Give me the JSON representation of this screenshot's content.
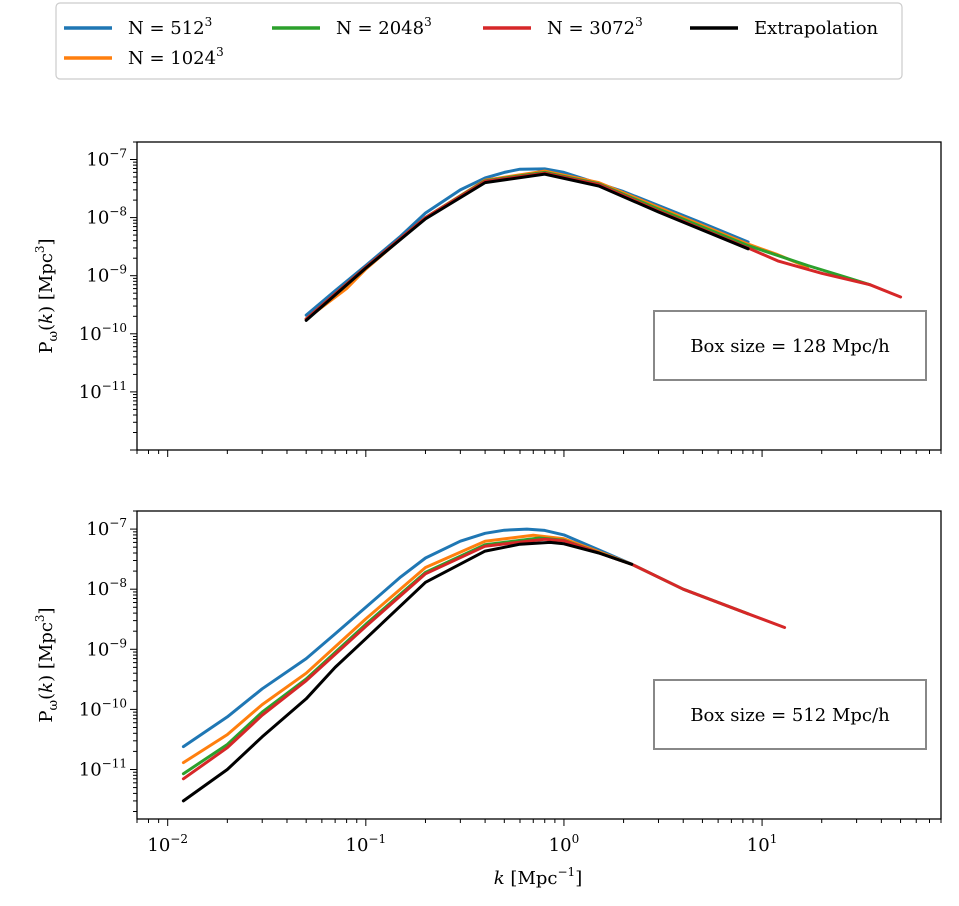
{
  "legend": [
    {
      "label": "N = 512",
      "sup": "3",
      "color": "#1f77b4"
    },
    {
      "label": "N = 1024",
      "sup": "3",
      "color": "#ff7f0e"
    },
    {
      "label": "N = 2048",
      "sup": "3",
      "color": "#2ca02c"
    },
    {
      "label": "N = 3072",
      "sup": "3",
      "color": "#d62728"
    },
    {
      "label": "Extrapolation",
      "sup": "",
      "color": "#000000"
    }
  ],
  "chart_data": [
    {
      "type": "line",
      "xscale": "log",
      "yscale": "log",
      "xlim": [
        0.007,
        80
      ],
      "ylim": [
        1e-12,
        2e-07
      ],
      "ylabel": "P_ω(k) [Mpc^3]",
      "xlabel": "",
      "y_ticks": [
        "10^-7",
        "10^-8",
        "10^-9",
        "10^-10",
        "10^-11"
      ],
      "box_label": "Box size = 128 Mpc/h",
      "series": [
        {
          "name": "N = 512^3",
          "x": [
            0.05,
            0.07,
            0.1,
            0.15,
            0.2,
            0.3,
            0.4,
            0.5,
            0.6,
            0.8,
            1.0,
            2.0,
            5.0,
            8.5
          ],
          "y": [
            2.1e-10,
            5.5e-10,
            1.5e-09,
            4.8e-09,
            1.2e-08,
            3e-08,
            4.8e-08,
            6e-08,
            6.8e-08,
            6.9e-08,
            6e-08,
            2.8e-08,
            8e-09,
            3.8e-09
          ]
        },
        {
          "name": "N = 1024^3",
          "x": [
            0.05,
            0.08,
            0.1,
            0.2,
            0.4,
            0.8,
            1.5,
            3.0,
            8.5,
            12,
            17
          ],
          "y": [
            1.8e-10,
            6e-10,
            1.3e-09,
            1e-08,
            4.4e-08,
            6.3e-08,
            4e-08,
            1.5e-08,
            3.5e-09,
            2.3e-09,
            1.4e-09
          ]
        },
        {
          "name": "N = 2048^3",
          "x": [
            0.05,
            0.1,
            0.2,
            0.4,
            0.8,
            1.5,
            3.0,
            8.5,
            17,
            25,
            35
          ],
          "y": [
            1.8e-10,
            1.4e-09,
            1e-08,
            4.3e-08,
            6e-08,
            3.8e-08,
            1.4e-08,
            3.3e-09,
            1.5e-09,
            1e-09,
            7e-10
          ]
        },
        {
          "name": "N = 3072^3",
          "x": [
            0.05,
            0.1,
            0.2,
            0.4,
            0.8,
            1.5,
            3.0,
            8.5,
            12,
            20,
            35,
            50
          ],
          "y": [
            1.8e-10,
            1.4e-09,
            1e-08,
            4.2e-08,
            5.8e-08,
            3.7e-08,
            1.3e-08,
            3e-09,
            1.8e-09,
            1.1e-09,
            7e-10,
            4.3e-10
          ]
        },
        {
          "name": "Extrapolation",
          "x": [
            0.05,
            0.1,
            0.2,
            0.4,
            0.8,
            1.5,
            3.0,
            8.5
          ],
          "y": [
            1.7e-10,
            1.35e-09,
            9.5e-09,
            4e-08,
            5.6e-08,
            3.5e-08,
            1.25e-08,
            2.9e-09
          ]
        }
      ]
    },
    {
      "type": "line",
      "xscale": "log",
      "yscale": "log",
      "xlim": [
        0.007,
        80
      ],
      "ylim": [
        1.5e-12,
        2e-07
      ],
      "ylabel": "P_ω(k) [Mpc^3]",
      "xlabel": "k [Mpc^-1]",
      "x_ticks": [
        "10^-2",
        "10^-1",
        "10^0",
        "10^1"
      ],
      "y_ticks": [
        "10^-7",
        "10^-8",
        "10^-9",
        "10^-10",
        "10^-11"
      ],
      "box_label": "Box size = 512 Mpc/h",
      "series": [
        {
          "name": "N = 512^3",
          "x": [
            0.012,
            0.02,
            0.03,
            0.05,
            0.07,
            0.1,
            0.15,
            0.2,
            0.3,
            0.4,
            0.5,
            0.65,
            0.8,
            1.0,
            1.5,
            2.2
          ],
          "y": [
            2.4e-11,
            7.5e-11,
            2.2e-10,
            7e-10,
            1.8e-09,
            5e-09,
            1.6e-08,
            3.3e-08,
            6.3e-08,
            8.5e-08,
            9.6e-08,
            1e-07,
            9.5e-08,
            8e-08,
            4.5e-08,
            2.6e-08
          ]
        },
        {
          "name": "N = 1024^3",
          "x": [
            0.012,
            0.02,
            0.03,
            0.05,
            0.1,
            0.2,
            0.4,
            0.7,
            1.0,
            1.5,
            2.2
          ],
          "y": [
            1.3e-11,
            3.8e-11,
            1.2e-10,
            4e-10,
            3.2e-09,
            2.3e-08,
            6.3e-08,
            7.9e-08,
            6.9e-08,
            4.2e-08,
            2.6e-08
          ]
        },
        {
          "name": "N = 2048^3",
          "x": [
            0.012,
            0.02,
            0.03,
            0.05,
            0.1,
            0.2,
            0.4,
            0.75,
            1.0,
            2.2,
            4.0,
            8.5
          ],
          "y": [
            8.5e-12,
            2.6e-11,
            9e-11,
            3.2e-10,
            2.6e-09,
            1.9e-08,
            5.5e-08,
            7.1e-08,
            6.5e-08,
            2.6e-08,
            1e-08,
            3.9e-09
          ]
        },
        {
          "name": "N = 3072^3",
          "x": [
            0.012,
            0.02,
            0.03,
            0.05,
            0.1,
            0.2,
            0.4,
            0.8,
            1.0,
            2.2,
            4.0,
            8.5,
            13
          ],
          "y": [
            7e-12,
            2.3e-11,
            8e-11,
            3e-10,
            2.4e-09,
            1.8e-08,
            5.2e-08,
            6.8e-08,
            6.4e-08,
            2.6e-08,
            1e-08,
            3.9e-09,
            2.3e-09
          ]
        },
        {
          "name": "Extrapolation",
          "x": [
            0.012,
            0.02,
            0.03,
            0.05,
            0.07,
            0.1,
            0.2,
            0.4,
            0.6,
            0.85,
            1.0,
            1.5,
            2.2
          ],
          "y": [
            3e-12,
            1e-11,
            3.5e-11,
            1.5e-10,
            5e-10,
            1.5e-09,
            1.3e-08,
            4.3e-08,
            5.6e-08,
            6e-08,
            5.7e-08,
            4e-08,
            2.6e-08
          ]
        }
      ]
    }
  ]
}
